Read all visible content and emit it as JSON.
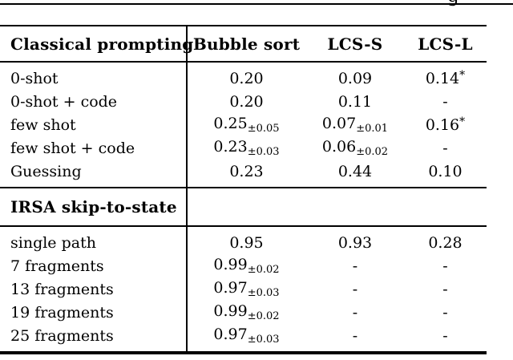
{
  "page": {
    "background": "#ffffff",
    "text_color": "#000000",
    "rule_color": "#000000",
    "clipped_text_fragment": "g"
  },
  "table": {
    "header": {
      "col0": "Classical prompting",
      "col1": "Bubble sort",
      "col2": "LCS-S",
      "col3": "LCS-L"
    },
    "section1": {
      "rows": [
        {
          "label": "0-shot",
          "c1": {
            "value": "0.20"
          },
          "c2": {
            "value": "0.09"
          },
          "c3": {
            "value": "0.14",
            "sup": "*"
          }
        },
        {
          "label": "0-shot + code",
          "c1": {
            "value": "0.20"
          },
          "c2": {
            "value": "0.11"
          },
          "c3": {
            "value": "-"
          }
        },
        {
          "label": "few shot",
          "c1": {
            "value": "0.25",
            "sub": "±0.05"
          },
          "c2": {
            "value": "0.07",
            "sub": "±0.01"
          },
          "c3": {
            "value": "0.16",
            "sup": "*"
          }
        },
        {
          "label": "few shot + code",
          "c1": {
            "value": "0.23",
            "sub": "±0.03"
          },
          "c2": {
            "value": "0.06",
            "sub": "±0.02"
          },
          "c3": {
            "value": "-"
          }
        },
        {
          "label": "Guessing",
          "c1": {
            "value": "0.23"
          },
          "c2": {
            "value": "0.44"
          },
          "c3": {
            "value": "0.10"
          }
        }
      ]
    },
    "section2": {
      "header": "IRSA skip-to-state",
      "rows": [
        {
          "label": "single path",
          "c1": {
            "value": "0.95"
          },
          "c2": {
            "value": "0.93"
          },
          "c3": {
            "value": "0.28"
          }
        },
        {
          "label": "7 fragments",
          "c1": {
            "value": "0.99",
            "sub": "±0.02"
          },
          "c2": {
            "value": "-"
          },
          "c3": {
            "value": "-"
          }
        },
        {
          "label": "13 fragments",
          "c1": {
            "value": "0.97",
            "sub": "±0.03"
          },
          "c2": {
            "value": "-"
          },
          "c3": {
            "value": "-"
          }
        },
        {
          "label": "19 fragments",
          "c1": {
            "value": "0.99",
            "sub": "±0.02"
          },
          "c2": {
            "value": "-"
          },
          "c3": {
            "value": "-"
          }
        },
        {
          "label": "25 fragments",
          "c1": {
            "value": "0.97",
            "sub": "±0.03"
          },
          "c2": {
            "value": "-"
          },
          "c3": {
            "value": "-"
          }
        }
      ]
    }
  }
}
